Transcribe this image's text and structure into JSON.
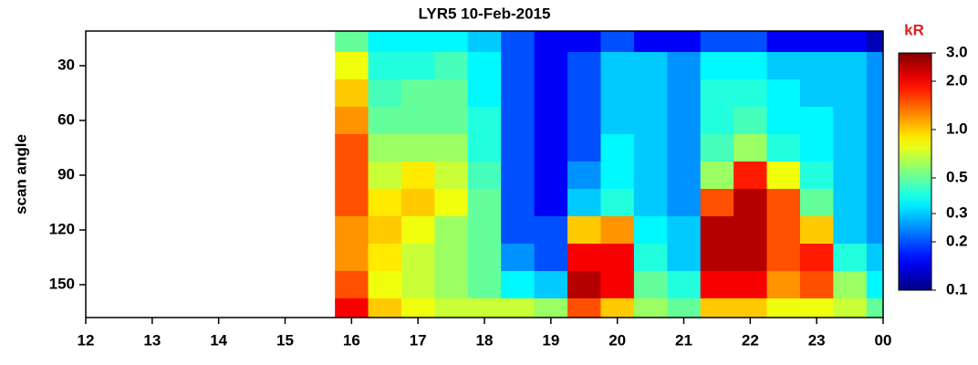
{
  "chart_data": {
    "type": "heatmap",
    "title": "LYR5  10-Feb-2015",
    "y_label": "scan angle",
    "colorbar_label": "kR",
    "colormap": "jet",
    "zscale": "log",
    "x": [
      16,
      16.5,
      17,
      17.5,
      18,
      18.5,
      19,
      19.5,
      20,
      20.5,
      21,
      21.5,
      22,
      22.5,
      23,
      23.5,
      24
    ],
    "y": [
      15,
      30,
      45,
      60,
      75,
      90,
      105,
      120,
      135,
      150,
      165
    ],
    "z": [
      [
        0.5,
        0.35,
        0.35,
        0.35,
        0.3,
        0.2,
        0.15,
        0.15,
        0.2,
        0.15,
        0.15,
        0.2,
        0.2,
        0.15,
        0.15,
        0.15,
        0.12
      ],
      [
        0.8,
        0.4,
        0.4,
        0.45,
        0.35,
        0.2,
        0.15,
        0.2,
        0.3,
        0.3,
        0.25,
        0.35,
        0.35,
        0.3,
        0.3,
        0.3,
        0.25
      ],
      [
        1,
        0.45,
        0.5,
        0.5,
        0.35,
        0.2,
        0.15,
        0.2,
        0.3,
        0.3,
        0.25,
        0.4,
        0.4,
        0.35,
        0.3,
        0.3,
        0.25
      ],
      [
        1.2,
        0.5,
        0.5,
        0.5,
        0.4,
        0.2,
        0.15,
        0.2,
        0.3,
        0.3,
        0.25,
        0.4,
        0.45,
        0.35,
        0.35,
        0.3,
        0.25
      ],
      [
        1.5,
        0.6,
        0.6,
        0.6,
        0.4,
        0.2,
        0.15,
        0.2,
        0.35,
        0.3,
        0.25,
        0.45,
        0.6,
        0.4,
        0.35,
        0.3,
        0.25
      ],
      [
        1.5,
        0.7,
        0.9,
        0.7,
        0.45,
        0.2,
        0.15,
        0.25,
        0.35,
        0.3,
        0.25,
        0.6,
        1.8,
        0.8,
        0.4,
        0.3,
        0.25
      ],
      [
        1.5,
        0.9,
        1,
        0.8,
        0.5,
        0.2,
        0.15,
        0.3,
        0.4,
        0.3,
        0.25,
        1.5,
        2.5,
        1.5,
        0.5,
        0.3,
        0.25
      ],
      [
        1.2,
        1,
        0.8,
        0.6,
        0.5,
        0.2,
        0.2,
        1,
        1.2,
        0.35,
        0.3,
        2.5,
        2.5,
        1.5,
        1,
        0.3,
        0.25
      ],
      [
        1.2,
        0.9,
        0.7,
        0.6,
        0.5,
        0.25,
        0.2,
        2,
        2,
        0.4,
        0.3,
        2.5,
        2.5,
        1.5,
        1.8,
        0.4,
        0.3
      ],
      [
        1.5,
        0.8,
        0.7,
        0.6,
        0.5,
        0.35,
        0.3,
        2.5,
        2,
        0.5,
        0.4,
        2,
        2,
        1.2,
        1.5,
        0.6,
        0.35
      ],
      [
        2,
        1,
        0.8,
        0.7,
        0.7,
        0.7,
        0.6,
        1.5,
        1,
        0.6,
        0.5,
        1,
        1,
        0.8,
        0.8,
        0.7,
        0.5
      ]
    ],
    "xlim": [
      12,
      24
    ],
    "xticks": [
      12,
      13,
      14,
      15,
      16,
      17,
      18,
      19,
      20,
      21,
      22,
      23,
      {
        "value": 24,
        "label": "00"
      }
    ],
    "ylim": [
      168,
      11
    ],
    "yticks": [
      30,
      60,
      90,
      120,
      150
    ],
    "zlim": [
      0.1,
      3
    ],
    "zticks": [
      {
        "value": 3,
        "label": "3.0"
      },
      {
        "value": 2,
        "label": "2.0"
      },
      {
        "value": 1,
        "label": "1.0"
      },
      0.5,
      0.3,
      0.2,
      0.1
    ]
  }
}
